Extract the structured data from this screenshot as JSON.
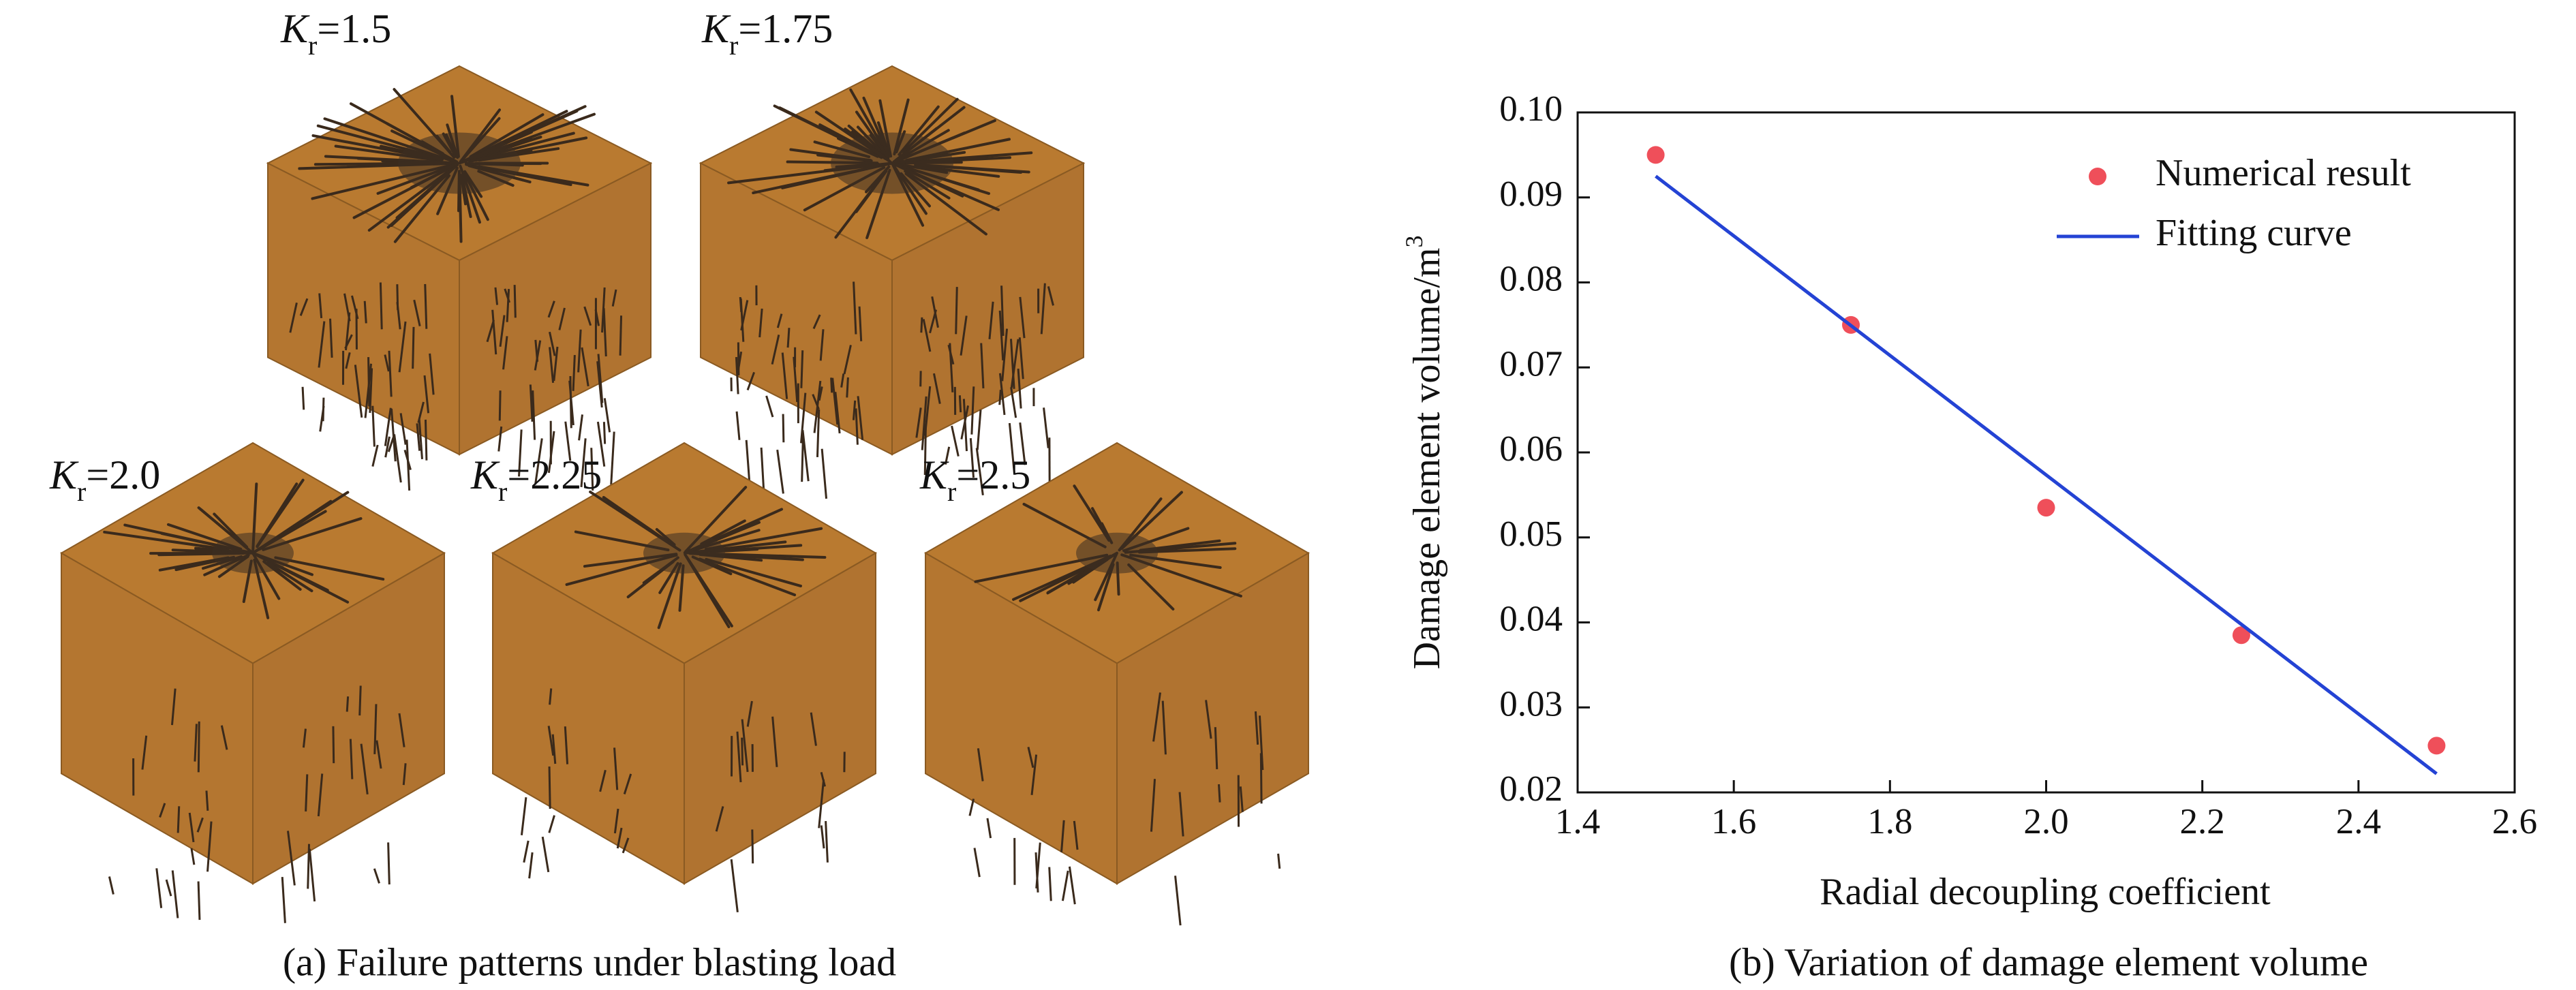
{
  "panel_a": {
    "caption": "(a) Failure patterns under blasting load",
    "labels": [
      {
        "symbol": "K",
        "subscript": "r",
        "text": "=1.5"
      },
      {
        "symbol": "K",
        "subscript": "r",
        "text": "=1.75"
      },
      {
        "symbol": "K",
        "subscript": "r",
        "text": "=2.0"
      },
      {
        "symbol": "K",
        "subscript": "r",
        "text": "=2.25"
      },
      {
        "symbol": "K",
        "subscript": "r",
        "text": "=2.5"
      }
    ]
  },
  "chart_data": {
    "type": "scatter",
    "caption": "(b) Variation of damage element volume",
    "xlabel": "Radial decoupling coefficient",
    "ylabel": "Damage element volume/m",
    "ylabel_superscript": "3",
    "xlim": [
      1.4,
      2.6
    ],
    "xticks": [
      1.4,
      1.6,
      1.8,
      {
        "value": 2,
        "label": "2.0"
      },
      2.2,
      2.4,
      2.6
    ],
    "ylim": [
      0.02,
      0.1
    ],
    "yticks": [
      0.02,
      0.03,
      0.04,
      0.05,
      0.06,
      0.07,
      0.08,
      0.09,
      {
        "value": 0.1,
        "label": "0.10"
      }
    ],
    "legend": "upper right",
    "series": [
      {
        "name": "Numerical result",
        "mode": "markers",
        "color": "#ef4f5a",
        "x": [
          1.5,
          1.75,
          2.0,
          2.25,
          2.5
        ],
        "values": [
          0.095,
          0.075,
          0.0535,
          0.0385,
          0.0255
        ]
      },
      {
        "name": "Fitting curve",
        "mode": "line",
        "color": "#2443d4",
        "x": [
          1.5,
          2.5
        ],
        "values": [
          0.0925,
          0.0222
        ]
      }
    ]
  }
}
